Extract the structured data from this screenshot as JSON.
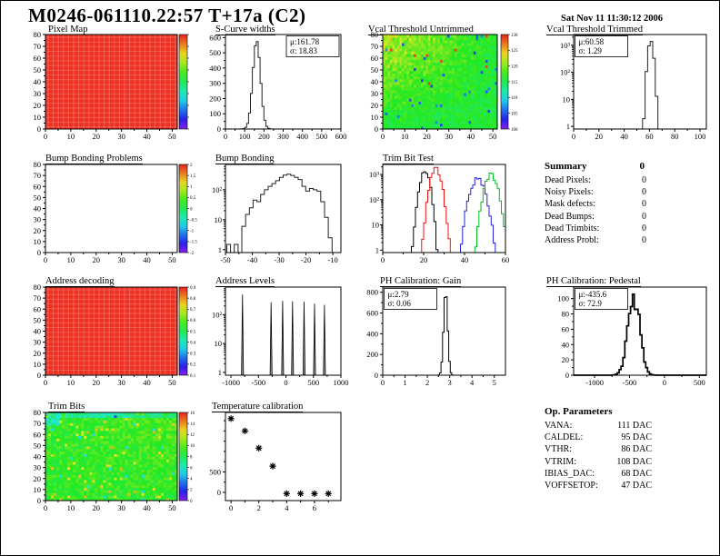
{
  "page": {
    "title": "M0246-061110.22:57 T+17a (C2)",
    "timestamp": "Sat Nov 11 11:30:12 2006"
  },
  "summary": {
    "title": "Summary",
    "title_value": "0",
    "rows": [
      {
        "label": "Dead Pixels:",
        "value": "0"
      },
      {
        "label": "Noisy Pixels:",
        "value": "0"
      },
      {
        "label": "Mask defects:",
        "value": "0"
      },
      {
        "label": "Dead Bumps:",
        "value": "0"
      },
      {
        "label": "Dead Trimbits:",
        "value": "0"
      },
      {
        "label": "Address Probl:",
        "value": "0"
      }
    ]
  },
  "op_parameters": {
    "title": "Op. Parameters",
    "rows": [
      {
        "label": "VANA:",
        "value": "111 DAC"
      },
      {
        "label": "CALDEL:",
        "value": "95 DAC"
      },
      {
        "label": "VTHR:",
        "value": "86 DAC"
      },
      {
        "label": "VTRIM:",
        "value": "108 DAC"
      },
      {
        "label": "IBIAS_DAC:",
        "value": "68 DAC"
      },
      {
        "label": "VOFFSETOP:",
        "value": "47 DAC"
      }
    ]
  },
  "colors": {
    "map_red": "#ee3123",
    "hist_line": "#222222",
    "trim_black": "#000000",
    "trim_red": "#ee1111",
    "trim_blue": "#2222dd",
    "trim_green": "#00bb22"
  },
  "chart_data": [
    {
      "id": "pixel_map",
      "type": "heatmap",
      "title": "Pixel Map",
      "pattern": "uniform_red",
      "xlim": [
        0,
        52
      ],
      "ylim": [
        0,
        80
      ],
      "xticks": [
        0,
        10,
        20,
        30,
        40,
        50
      ],
      "yticks": [
        0,
        10,
        20,
        30,
        40,
        50,
        60,
        70,
        80
      ],
      "colorbar": {
        "labels": []
      }
    },
    {
      "id": "scurve_widths",
      "type": "hist",
      "title": "S-Curve widths",
      "stats": {
        "mu": "μ:161.78",
        "sigma": "σ: 18.83"
      },
      "stats_pos": "tr",
      "xlim": [
        0,
        600
      ],
      "xticks": [
        0,
        100,
        200,
        300,
        400,
        500,
        600
      ],
      "yscale": "linear",
      "ylim": [
        0,
        620
      ],
      "yticks": [
        0,
        100,
        200,
        300,
        400,
        500,
        600
      ],
      "series": [
        {
          "color": "#222222",
          "shape": "gaussian",
          "mu": 162,
          "sigma": 20,
          "peak": 580,
          "bins": 60
        }
      ]
    },
    {
      "id": "vcal_untrimmed",
      "type": "heatmap",
      "title": "Vcal Threshold Untrimmed",
      "pattern": "noisy_green_tl",
      "xlim": [
        0,
        52
      ],
      "ylim": [
        0,
        80
      ],
      "xticks": [
        0,
        10,
        20,
        30,
        40,
        50
      ],
      "yticks": [
        0,
        10,
        20,
        30,
        40,
        50,
        60,
        70,
        80
      ],
      "colorbar": {
        "labels": [
          130,
          125,
          120,
          115,
          110,
          105,
          100
        ]
      }
    },
    {
      "id": "vcal_trimmed",
      "type": "hist",
      "title": "Vcal Threshold Trimmed",
      "stats": {
        "mu": "μ:60.58",
        "sigma": "σ: 1.29"
      },
      "stats_pos": "tl",
      "xlim": [
        0,
        105
      ],
      "xticks": [
        0,
        20,
        40,
        60,
        80,
        100
      ],
      "yscale": "log",
      "ylim": [
        0.8,
        2500
      ],
      "series": [
        {
          "color": "#222222",
          "shape": "gaussian",
          "mu": 61,
          "sigma": 1.5,
          "peak": 1500,
          "bins": 52
        }
      ]
    },
    {
      "id": "bb_problems",
      "type": "heatmap",
      "title": "Bump Bonding Problems",
      "pattern": "empty",
      "xlim": [
        0,
        52
      ],
      "ylim": [
        0,
        80
      ],
      "xticks": [
        0,
        10,
        20,
        30,
        40,
        50
      ],
      "yticks": [
        0,
        10,
        20,
        30,
        40,
        50,
        60,
        70,
        80
      ],
      "colorbar": {
        "labels": [
          2,
          1.5,
          1,
          0.5,
          0,
          -0.5,
          -1,
          -1.5,
          -2
        ]
      }
    },
    {
      "id": "bump_bonding",
      "type": "hist",
      "title": "Bump Bonding",
      "xlim": [
        -50,
        -7
      ],
      "xticks": [
        -50,
        -40,
        -30,
        -20,
        -10
      ],
      "yscale": "log",
      "ylim": [
        0.8,
        700
      ],
      "series": [
        {
          "color": "#222222",
          "shape": "bins",
          "x0": -49.5,
          "bin_width": 1.4,
          "values": [
            1.5,
            0,
            1.5,
            0,
            6,
            15,
            25,
            45,
            40,
            70,
            100,
            130,
            160,
            200,
            260,
            310,
            330,
            300,
            260,
            220,
            130,
            90,
            110,
            100,
            90,
            40,
            12,
            2.5
          ]
        }
      ]
    },
    {
      "id": "trim_bit_test",
      "type": "hist",
      "title": "Trim Bit Test",
      "xlim": [
        0,
        60
      ],
      "xticks": [
        0,
        20,
        40,
        60
      ],
      "yscale": "log",
      "ylim": [
        0.8,
        2500
      ],
      "series": [
        {
          "color": "#000000",
          "shape": "gaussian",
          "mu": 20.5,
          "sigma": 1.6,
          "peak": 1400,
          "bins": 60,
          "noise": 0.3
        },
        {
          "color": "#ee1111",
          "shape": "gaussian",
          "mu": 26,
          "sigma": 1.8,
          "peak": 1600,
          "bins": 60,
          "noise": 0.3
        },
        {
          "color": "#2222dd",
          "shape": "gaussian",
          "mu": 46.5,
          "sigma": 2.3,
          "peak": 850,
          "bins": 60,
          "noise": 0.35
        },
        {
          "color": "#00bb22",
          "shape": "gaussian",
          "mu": 53,
          "sigma": 2.1,
          "peak": 900,
          "bins": 60,
          "noise": 0.35
        }
      ]
    },
    {
      "id": "address_decoding",
      "type": "heatmap",
      "title": "Address decoding",
      "pattern": "uniform_red",
      "xlim": [
        0,
        52
      ],
      "ylim": [
        0,
        80
      ],
      "xticks": [
        0,
        10,
        20,
        30,
        40,
        50
      ],
      "yticks": [
        0,
        10,
        20,
        30,
        40,
        50,
        60,
        70,
        80
      ],
      "colorbar": {
        "labels": [
          0.9,
          0.8,
          0.7,
          0.6,
          0.5,
          0.4,
          0.3,
          0.2,
          0.1
        ]
      }
    },
    {
      "id": "address_levels",
      "type": "hist",
      "title": "Address Levels",
      "xlim": [
        -1100,
        1000
      ],
      "xticks": [
        -1000,
        -500,
        0,
        500,
        1000
      ],
      "yscale": "log",
      "ylim": [
        0.8,
        900
      ],
      "series": [
        {
          "color": "#555555",
          "shape": "spikes",
          "width": 36,
          "positions": [
            -790,
            -270,
            -60,
            120,
            330,
            520,
            700
          ],
          "heights": [
            500,
            270,
            300,
            290,
            280,
            240,
            220
          ]
        }
      ]
    },
    {
      "id": "ph_gain",
      "type": "hist",
      "title": "PH Calibration: Gain",
      "stats": {
        "mu": "μ:2.79",
        "sigma": "σ: 0.06"
      },
      "stats_pos": "tl",
      "xlim": [
        0,
        5.5
      ],
      "xticks": [
        0,
        1,
        2,
        3,
        4,
        5
      ],
      "yscale": "linear",
      "ylim": [
        0,
        850
      ],
      "yticks": [
        0,
        200,
        400,
        600,
        800
      ],
      "series": [
        {
          "color": "#000000",
          "shape": "gaussian",
          "mu": 2.82,
          "sigma": 0.09,
          "peak": 810,
          "bins": 80
        }
      ]
    },
    {
      "id": "ph_pedestal",
      "type": "hist",
      "title": "PH Calibration: Pedestal",
      "stats": {
        "mu": "μ:-435.6",
        "sigma": "σ: 72.9"
      },
      "stats_pos": "tl",
      "xlim": [
        -1300,
        600
      ],
      "xticks": [
        -1000,
        -500,
        0,
        500
      ],
      "yscale": "linear",
      "ylim": [
        0,
        115
      ],
      "yticks": [
        0,
        20,
        40,
        60,
        80,
        100
      ],
      "series": [
        {
          "color": "#000000",
          "shape": "gaussian",
          "mu": -440,
          "sigma": 85,
          "peak": 100,
          "bins": 70,
          "noise": 0.2,
          "sw": 1.7
        }
      ]
    },
    {
      "id": "trim_bits",
      "type": "heatmap",
      "title": "Trim Bits",
      "pattern": "noisy_trim",
      "xlim": [
        0,
        52
      ],
      "ylim": [
        0,
        80
      ],
      "xticks": [
        0,
        10,
        20,
        30,
        40,
        50
      ],
      "yticks": [
        0,
        10,
        20,
        30,
        40,
        50,
        60,
        70,
        80
      ],
      "colorbar": {
        "labels": [
          16,
          14,
          12,
          10,
          8,
          6,
          4,
          2,
          0
        ]
      }
    },
    {
      "id": "temp_cal",
      "type": "scatter",
      "title": "Temperature calibration",
      "xlim": [
        -0.4,
        7.9
      ],
      "xticks": [
        0,
        2,
        4,
        6
      ],
      "xminor": [
        1,
        3,
        5,
        7
      ],
      "ylim": [
        -200,
        1950
      ],
      "yticks_labeled": [
        [
          500,
          "500"
        ],
        [
          0,
          "0"
        ]
      ],
      "yminor": [
        1500,
        1000,
        250,
        750,
        1250,
        1750
      ],
      "points": [
        [
          0,
          1800
        ],
        [
          1,
          1500
        ],
        [
          2,
          1080
        ],
        [
          3,
          640
        ],
        [
          4,
          -30
        ],
        [
          5,
          -30
        ],
        [
          6,
          -30
        ],
        [
          7,
          -30
        ]
      ]
    }
  ]
}
